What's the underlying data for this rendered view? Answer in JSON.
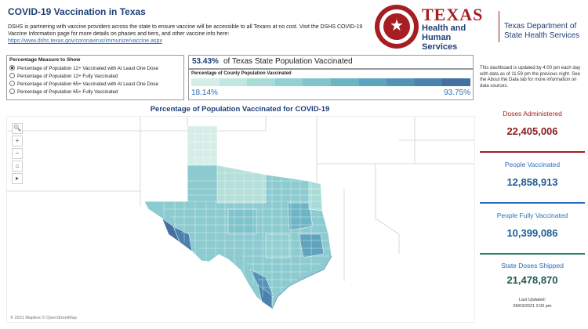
{
  "header": {
    "title": "COVID-19 Vaccination in Texas",
    "intro_text": "DSHS is partnering with vaccine providers across the state to ensure vaccine will be accessible to all Texans at no cost. Visit the DSHS COVID-19 Vaccine Information page for more details on phases and tiers, and other vaccine info here:",
    "intro_link": "https://www.dshs.texas.gov/coronavirus/immunize/vaccine.aspx"
  },
  "logos": {
    "hhs_texas": "TEXAS",
    "hhs_line1": "Health and Human",
    "hhs_line2": "Services",
    "dshs_line1": "Texas Department of",
    "dshs_line2": "State Health Services",
    "seal_icon": "star-seal-icon"
  },
  "measure": {
    "title": "Percentage Measure to Show",
    "options": [
      {
        "label": "Percentage of Population 12+ Vaccinated with At Least One Dose",
        "selected": true
      },
      {
        "label": "Percentage of Population 12+ Fully Vaccinated",
        "selected": false
      },
      {
        "label": "Percentage of Population 65+ Vaccinated with At Least One Dose",
        "selected": false
      },
      {
        "label": "Percentage of Population 65+ Fully Vaccinated",
        "selected": false
      }
    ]
  },
  "summary": {
    "pct_value": "53.43%",
    "pct_label": "of Texas State Population Vaccinated"
  },
  "legend": {
    "title": "Percentage of County Population Vaccinated",
    "min": "18.14%",
    "max": "93.75%",
    "colors": [
      "#d6eee8",
      "#c2e6e0",
      "#a9dcd7",
      "#92d0d1",
      "#7fc3cb",
      "#6db4c5",
      "#5fa4be",
      "#5393b6",
      "#4a82ad",
      "#43709f"
    ]
  },
  "update_note": "This dashboard is updated by 4:00 pm each day with data as of 11:59 pm the previous night. See the About the Data tab for more information on data sources.",
  "map": {
    "title": "Percentage of Population Vaccinated for COVID-19",
    "controls": [
      "🔍",
      "+",
      "−",
      "⌂",
      "▸"
    ],
    "credit": "© 2021 Mapbox © OpenStreetMap"
  },
  "stats": [
    {
      "label": "Doses Administered",
      "value": "22,405,006",
      "label_color": "#a61e22",
      "value_color": "#8b1a1d",
      "rule_color": "#a61e22"
    },
    {
      "label": "People Vaccinated",
      "value": "12,858,913",
      "label_color": "#2a6ebb",
      "value_color": "#1f5a96",
      "rule_color": "#2a6ebb"
    },
    {
      "label": "People Fully Vaccinated",
      "value": "10,399,086",
      "label_color": "#2a6ebb",
      "value_color": "#1f5a96",
      "rule_color": "#2a7c6a"
    },
    {
      "label": "State Doses Shipped",
      "value": "21,478,870",
      "label_color": "#2a6ebb",
      "value_color": "#1f5a50",
      "rule_color": "#2a7c6a"
    }
  ],
  "last_updated": {
    "label": "Last Updated:",
    "value": "06/03/2021 2:00 pm"
  }
}
